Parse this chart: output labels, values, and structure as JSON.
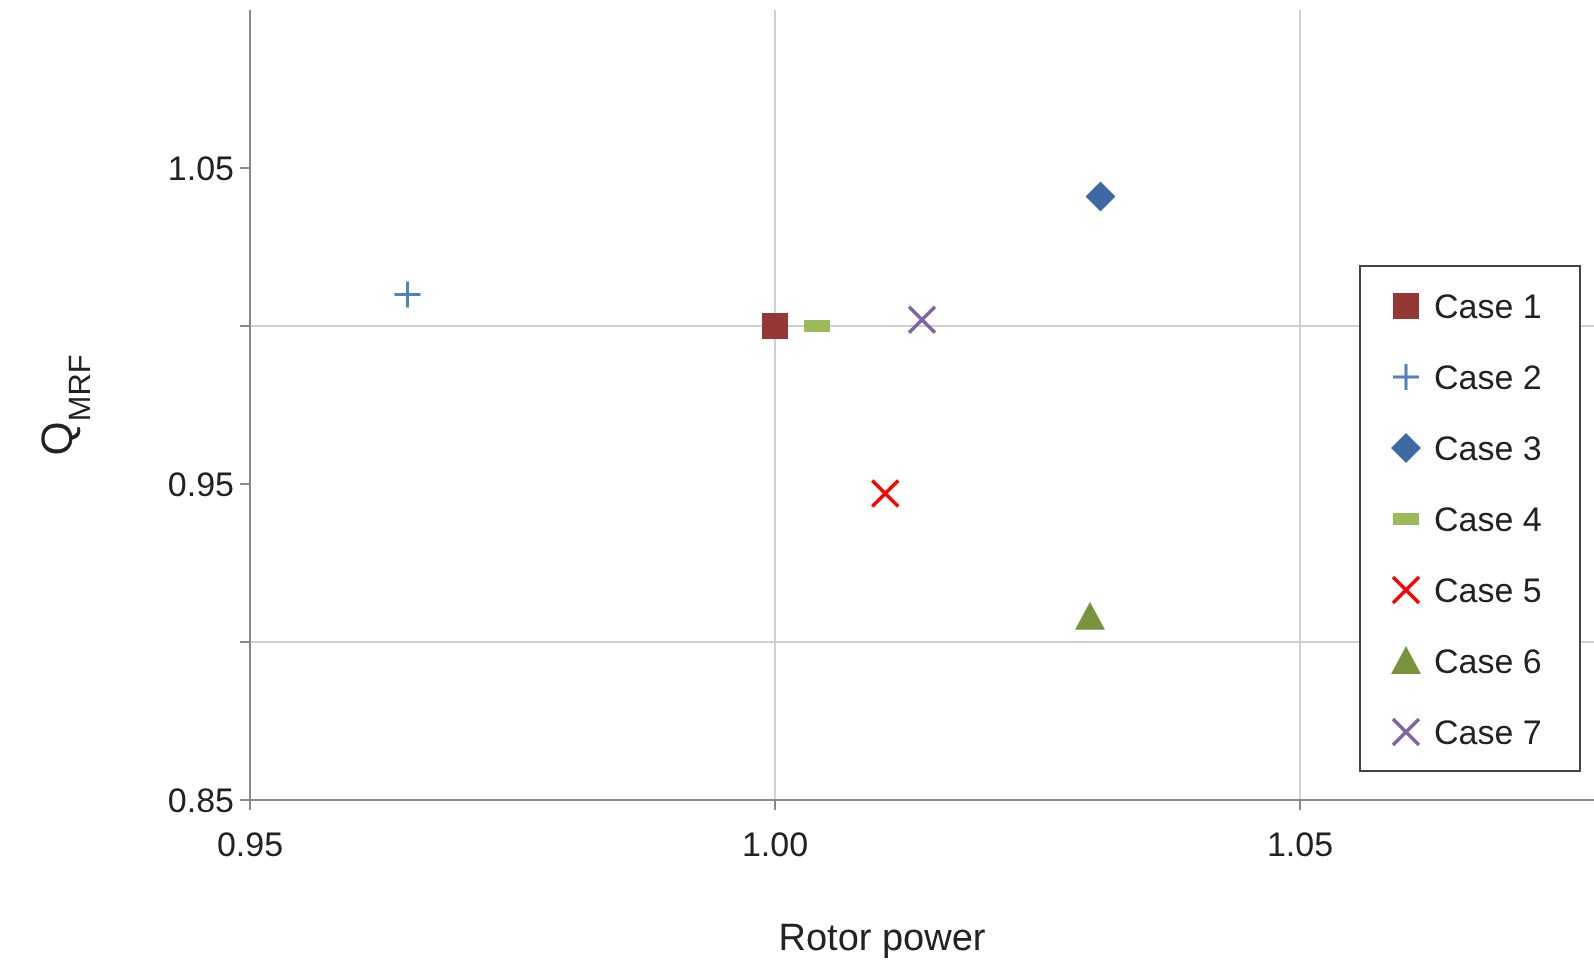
{
  "chart_data": {
    "type": "scatter",
    "xlabel": "Rotor power",
    "ylabel": "Q$_{MRF}$",
    "xlim": [
      0.95,
      1.078
    ],
    "ylim": [
      0.85,
      1.1
    ],
    "xticks": [
      {
        "value": 0.95,
        "label": "0.95"
      },
      {
        "value": 1.0,
        "label": "1.00"
      },
      {
        "value": 1.05,
        "label": "1.05"
      }
    ],
    "yticks": [
      {
        "value": 0.85,
        "label": "0.85"
      },
      {
        "value": 0.9,
        "label": null
      },
      {
        "value": 0.95,
        "label": "0.95"
      },
      {
        "value": 1.0,
        "label": null
      },
      {
        "value": 1.05,
        "label": "1.05"
      }
    ],
    "grid": true,
    "legend": "right",
    "series": [
      {
        "name": "Case 1",
        "color": "#953735",
        "marker": "square",
        "x": [
          1.0
        ],
        "values": [
          1.0
        ]
      },
      {
        "name": "Case 2",
        "color": "#4f81bd",
        "marker": "plus",
        "x": [
          0.965
        ],
        "values": [
          1.01
        ]
      },
      {
        "name": "Case 3",
        "color": "#3d6aa5",
        "marker": "diamond",
        "x": [
          1.031
        ],
        "values": [
          1.041
        ]
      },
      {
        "name": "Case 4",
        "color": "#9bbb59",
        "x": [
          1.004
        ],
        "values": [
          1.0
        ]
      },
      {
        "name": "Case 5",
        "color": "#ff0000",
        "marker": "x",
        "x": [
          1.0105
        ],
        "values": [
          0.947
        ]
      },
      {
        "name": "Case 6",
        "color": "#77933c",
        "marker": "triangle",
        "x": [
          1.03
        ],
        "values": [
          0.908
        ]
      },
      {
        "name": "Case 7",
        "color": "#8064a2",
        "marker": "x",
        "x": [
          1.014
        ],
        "values": [
          1.002
        ]
      }
    ]
  }
}
